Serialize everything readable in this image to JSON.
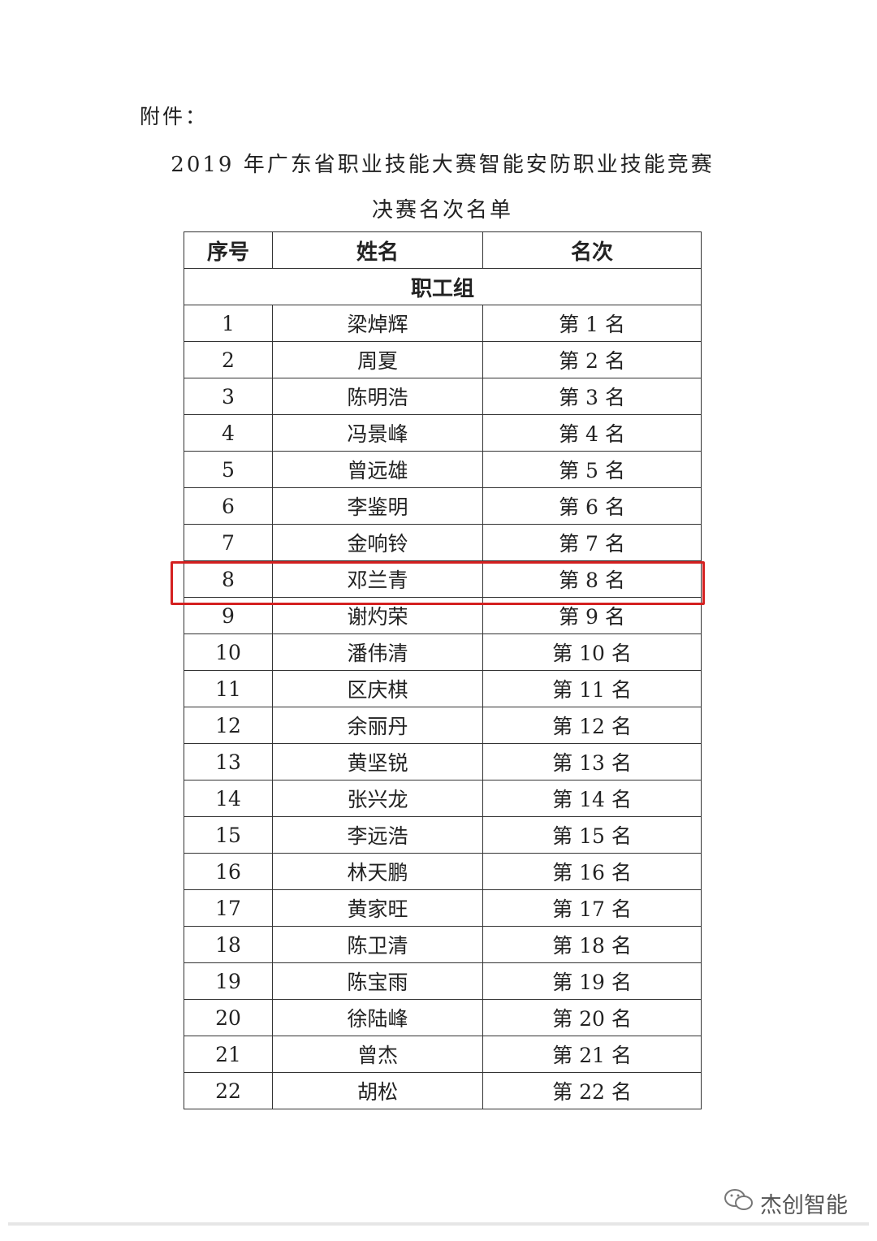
{
  "attachment_label": "附件：",
  "title_line1": "2019 年广东省职业技能大赛智能安防职业技能竞赛",
  "title_line2": "决赛名次名单",
  "table": {
    "headers": [
      "序号",
      "姓名",
      "名次"
    ],
    "group": "职工组",
    "rows": [
      {
        "no": "1",
        "name": "梁焯辉",
        "rank": "第 1 名"
      },
      {
        "no": "2",
        "name": "周夏",
        "rank": "第 2 名"
      },
      {
        "no": "3",
        "name": "陈明浩",
        "rank": "第 3 名"
      },
      {
        "no": "4",
        "name": "冯景峰",
        "rank": "第 4 名"
      },
      {
        "no": "5",
        "name": "曾远雄",
        "rank": "第 5 名"
      },
      {
        "no": "6",
        "name": "李鉴明",
        "rank": "第 6 名"
      },
      {
        "no": "7",
        "name": "金响铃",
        "rank": "第 7 名"
      },
      {
        "no": "8",
        "name": "邓兰青",
        "rank": "第 8 名"
      },
      {
        "no": "9",
        "name": "谢灼荣",
        "rank": "第 9 名"
      },
      {
        "no": "10",
        "name": "潘伟清",
        "rank": "第 10 名"
      },
      {
        "no": "11",
        "name": "区庆棋",
        "rank": "第 11 名"
      },
      {
        "no": "12",
        "name": "余丽丹",
        "rank": "第 12 名"
      },
      {
        "no": "13",
        "name": "黄坚锐",
        "rank": "第 13 名"
      },
      {
        "no": "14",
        "name": "张兴龙",
        "rank": "第 14 名"
      },
      {
        "no": "15",
        "name": "李远浩",
        "rank": "第 15 名"
      },
      {
        "no": "16",
        "name": "林天鹏",
        "rank": "第 16 名"
      },
      {
        "no": "17",
        "name": "黄家旺",
        "rank": "第 17 名"
      },
      {
        "no": "18",
        "name": "陈卫清",
        "rank": "第 18 名"
      },
      {
        "no": "19",
        "name": "陈宝雨",
        "rank": "第 19 名"
      },
      {
        "no": "20",
        "name": "徐陆峰",
        "rank": "第 20 名"
      },
      {
        "no": "21",
        "name": "曾杰",
        "rank": "第 21 名"
      },
      {
        "no": "22",
        "name": "胡松",
        "rank": "第 22 名"
      }
    ],
    "highlighted_row": 8,
    "highlight_color": "#d42020"
  },
  "watermark": {
    "icon": "wechat-icon",
    "text": "杰创智能"
  }
}
